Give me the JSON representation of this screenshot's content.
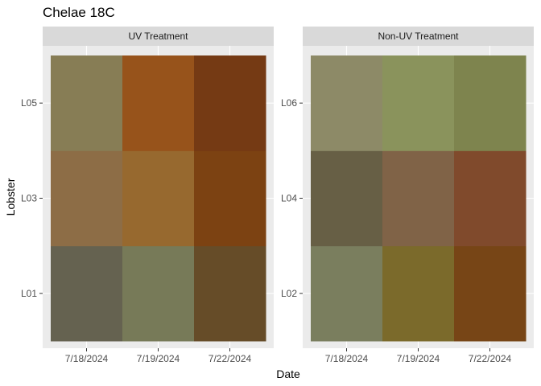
{
  "title": "Chelae 18C",
  "chart_data": {
    "type": "heatmap",
    "title": "Chelae 18C",
    "xlabel": "Date",
    "ylabel": "Lobster",
    "grid": true,
    "legend": "none",
    "panels": [
      {
        "strip": "UV Treatment",
        "x": [
          "7/18/2024",
          "7/19/2024",
          "7/22/2024"
        ],
        "y": [
          "L01",
          "L03",
          "L05"
        ],
        "tile_colors": [
          [
            "#656250",
            "#777A58",
            "#664C28"
          ],
          [
            "#8D6D46",
            "#97692F",
            "#7C4212"
          ],
          [
            "#877D55",
            "#97531B",
            "#753A14"
          ]
        ]
      },
      {
        "strip": "Non-UV Treatment",
        "x": [
          "7/18/2024",
          "7/19/2024",
          "7/22/2024"
        ],
        "y": [
          "L02",
          "L04",
          "L06"
        ],
        "tile_colors": [
          [
            "#7A7E5E",
            "#7B6A2B",
            "#774516"
          ],
          [
            "#675F45",
            "#806347",
            "#804A2C"
          ],
          [
            "#8D8A67",
            "#8A935C",
            "#7E844E"
          ]
        ]
      }
    ]
  }
}
